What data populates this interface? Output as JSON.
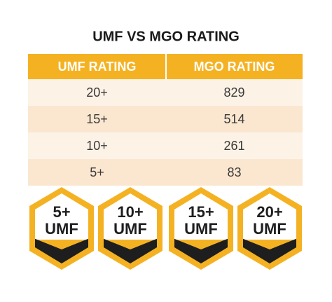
{
  "header": {
    "title": "UMF VS MGO RATING"
  },
  "table": {
    "columns": [
      "UMF RATING",
      "MGO RATING"
    ],
    "rows": [
      [
        "20+",
        "829"
      ],
      [
        "15+",
        "514"
      ],
      [
        "10+",
        "261"
      ],
      [
        "5+",
        "83"
      ]
    ]
  },
  "badges": [
    {
      "rating": "5+",
      "label": "UMF"
    },
    {
      "rating": "10+",
      "label": "UMF"
    },
    {
      "rating": "15+",
      "label": "UMF"
    },
    {
      "rating": "20+",
      "label": "UMF"
    }
  ]
}
